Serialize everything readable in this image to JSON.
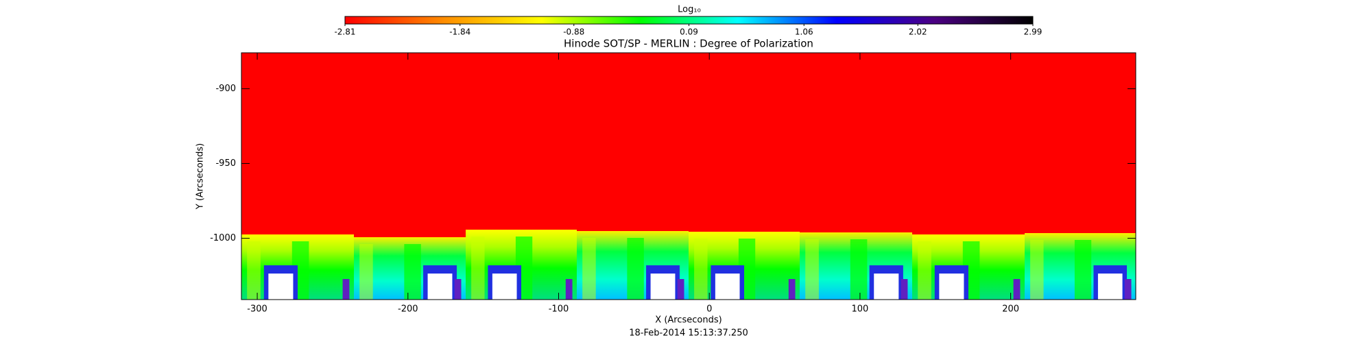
{
  "chart_data": {
    "type": "image",
    "title": "Hinode SOT/SP - MERLIN : Degree of Polarization",
    "xlabel": "X (Arcseconds)",
    "ylabel": "Y (Arcseconds)",
    "date": "18-Feb-2014  15:13:37.250",
    "xlim": [
      -310.5,
      283
    ],
    "xticks": [
      -300,
      -200,
      -100,
      0,
      100,
      200
    ],
    "ylim": [
      -1041,
      -876
    ],
    "yticks": [
      -900,
      -950,
      -1000
    ],
    "colorbar": {
      "title": "Log₁₀",
      "clim": [
        -2.81,
        2.99
      ],
      "ticks": [
        -2.81,
        -1.84,
        -0.88,
        0.09,
        1.06,
        2.02,
        2.99
      ],
      "colors": [
        "#ff0000",
        "#ff8c00",
        "#ffff00",
        "#00ff00",
        "#00ffff",
        "#0000ff",
        "#4b0082",
        "#000000"
      ]
    }
  }
}
